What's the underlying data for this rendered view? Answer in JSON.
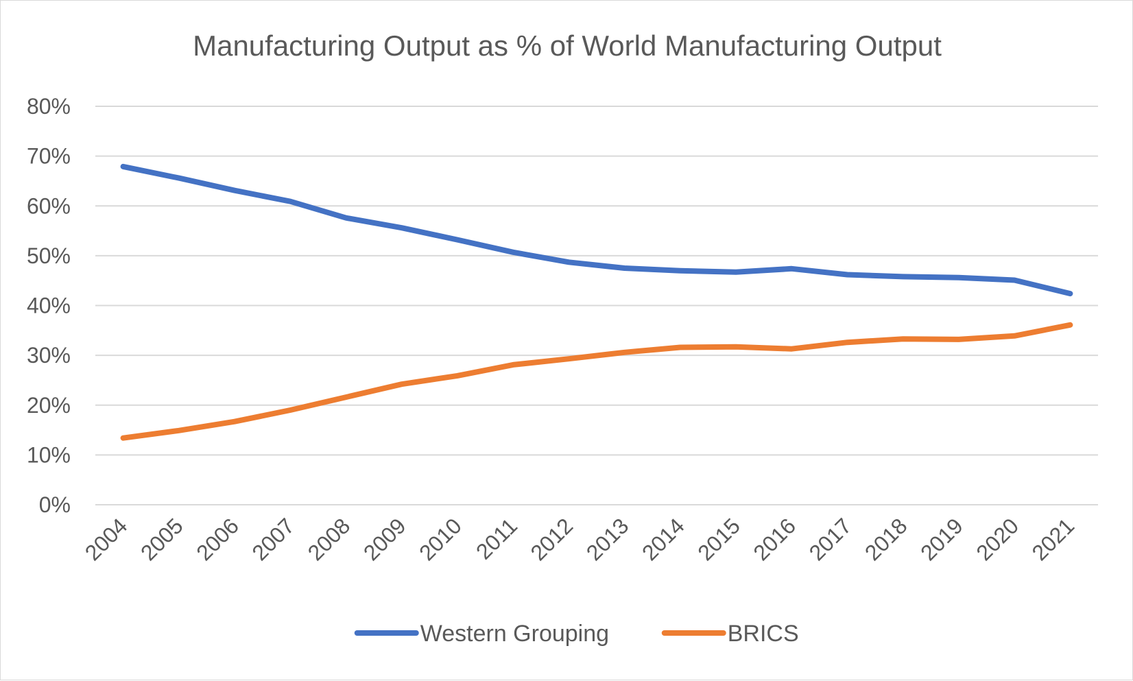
{
  "chart_data": {
    "type": "line",
    "title": "Manufacturing Output as % of World Manufacturing Output",
    "xlabel": "",
    "ylabel": "",
    "x": [
      "2004",
      "2005",
      "2006",
      "2007",
      "2008",
      "2009",
      "2010",
      "2011",
      "2012",
      "2013",
      "2014",
      "2015",
      "2016",
      "2017",
      "2018",
      "2019",
      "2020",
      "2021"
    ],
    "ylim": [
      0,
      80
    ],
    "yticks": [
      "0%",
      "10%",
      "20%",
      "30%",
      "40%",
      "50%",
      "60%",
      "70%",
      "80%"
    ],
    "grid": "horizontal",
    "legend_position": "bottom",
    "series": [
      {
        "name": "Western Grouping",
        "color": "#4472c4",
        "values": [
          67.9,
          65.6,
          63.1,
          60.9,
          57.6,
          55.6,
          53.2,
          50.7,
          48.7,
          47.5,
          47.0,
          46.7,
          47.4,
          46.2,
          45.8,
          45.6,
          45.1,
          42.4
        ]
      },
      {
        "name": "BRICS",
        "color": "#ed7d31",
        "values": [
          13.4,
          14.9,
          16.7,
          19.0,
          21.6,
          24.2,
          25.9,
          28.1,
          29.3,
          30.6,
          31.6,
          31.7,
          31.3,
          32.6,
          33.3,
          33.2,
          33.9,
          36.1
        ]
      }
    ]
  }
}
